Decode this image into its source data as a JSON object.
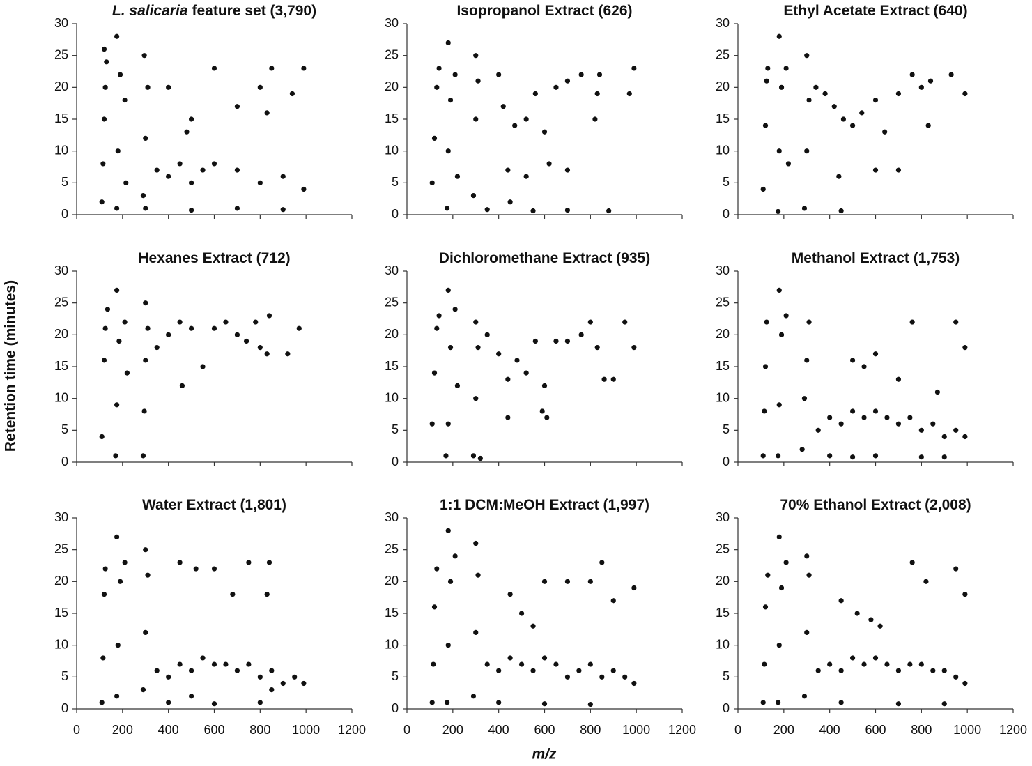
{
  "axis_labels": {
    "x": "m/z",
    "y": "Retention time (minutes)"
  },
  "chart_data": [
    {
      "type": "scatter",
      "title_emphasis": "L. salicaria",
      "title": "feature set (3,790)",
      "color": "#111111",
      "xtick_labels": false,
      "xlim": [
        0,
        1200
      ],
      "ylim": [
        0,
        30
      ],
      "xticks": [
        0,
        200,
        400,
        600,
        800,
        1000,
        1200
      ],
      "yticks": [
        0,
        5,
        10,
        15,
        20,
        25,
        30
      ],
      "x": [
        110,
        115,
        120,
        125,
        130,
        120,
        175,
        180,
        190,
        175,
        210,
        215,
        290,
        300,
        310,
        295,
        350,
        400,
        450,
        500,
        550,
        600,
        700,
        800,
        900,
        990,
        400,
        500,
        600,
        700,
        800,
        830,
        850,
        300,
        500,
        700,
        900,
        480,
        940,
        990
      ],
      "values": [
        2,
        8,
        15,
        20,
        24,
        26,
        1,
        10,
        22,
        28,
        18,
        5,
        3,
        12,
        20,
        25,
        7,
        6,
        8,
        5,
        7,
        8,
        7,
        5,
        6,
        4,
        20,
        15,
        23,
        17,
        20,
        16,
        23,
        1,
        0.7,
        1,
        0.8,
        13,
        19,
        23
      ]
    },
    {
      "type": "scatter",
      "title": "Isopropanol Extract (626)",
      "color": "#111111",
      "xtick_labels": false,
      "xlim": [
        0,
        1200
      ],
      "ylim": [
        0,
        30
      ],
      "xticks": [
        0,
        200,
        400,
        600,
        800,
        1000,
        1200
      ],
      "yticks": [
        0,
        5,
        10,
        15,
        20,
        25,
        30
      ],
      "x": [
        110,
        120,
        130,
        140,
        175,
        180,
        190,
        180,
        210,
        220,
        290,
        300,
        310,
        300,
        400,
        420,
        470,
        520,
        560,
        600,
        650,
        700,
        760,
        820,
        830,
        840,
        970,
        990,
        440,
        520,
        620,
        700,
        350,
        450,
        550,
        700,
        880
      ],
      "values": [
        5,
        12,
        20,
        23,
        1,
        10,
        18,
        27,
        22,
        6,
        3,
        15,
        21,
        25,
        22,
        17,
        14,
        15,
        19,
        13,
        20,
        21,
        22,
        15,
        19,
        22,
        19,
        23,
        7,
        6,
        8,
        7,
        0.8,
        2,
        0.6,
        0.7,
        0.6
      ]
    },
    {
      "type": "scatter",
      "title": "Ethyl Acetate Extract (640)",
      "color": "#111111",
      "xtick_labels": false,
      "xlim": [
        0,
        1200
      ],
      "ylim": [
        0,
        30
      ],
      "xticks": [
        0,
        200,
        400,
        600,
        800,
        1000,
        1200
      ],
      "yticks": [
        0,
        5,
        10,
        15,
        20,
        25,
        30
      ],
      "x": [
        110,
        120,
        125,
        130,
        175,
        180,
        190,
        180,
        210,
        220,
        290,
        300,
        310,
        300,
        340,
        380,
        420,
        460,
        500,
        540,
        600,
        640,
        700,
        760,
        800,
        830,
        840,
        930,
        990,
        440,
        600,
        700,
        450
      ],
      "values": [
        4,
        14,
        21,
        23,
        0.5,
        10,
        20,
        28,
        23,
        8,
        1,
        10,
        18,
        25,
        20,
        19,
        17,
        15,
        14,
        16,
        18,
        13,
        19,
        22,
        20,
        14,
        21,
        22,
        19,
        6,
        7,
        7,
        0.6
      ]
    },
    {
      "type": "scatter",
      "title": "Hexanes Extract (712)",
      "color": "#111111",
      "xtick_labels": false,
      "xlim": [
        0,
        1200
      ],
      "ylim": [
        0,
        30
      ],
      "xticks": [
        0,
        200,
        400,
        600,
        800,
        1000,
        1200
      ],
      "yticks": [
        0,
        5,
        10,
        15,
        20,
        25,
        30
      ],
      "x": [
        110,
        120,
        125,
        135,
        170,
        175,
        185,
        175,
        210,
        220,
        290,
        295,
        300,
        310,
        300,
        350,
        400,
        450,
        460,
        500,
        550,
        600,
        650,
        700,
        740,
        780,
        800,
        830,
        840,
        920,
        970
      ],
      "values": [
        4,
        16,
        21,
        24,
        1,
        9,
        19,
        27,
        22,
        14,
        1,
        8,
        16,
        21,
        25,
        18,
        20,
        22,
        12,
        21,
        15,
        21,
        22,
        20,
        19,
        22,
        18,
        17,
        23,
        17,
        21
      ]
    },
    {
      "type": "scatter",
      "title": "Dichloromethane Extract (935)",
      "color": "#111111",
      "xtick_labels": false,
      "xlim": [
        0,
        1200
      ],
      "ylim": [
        0,
        30
      ],
      "xticks": [
        0,
        200,
        400,
        600,
        800,
        1000,
        1200
      ],
      "yticks": [
        0,
        5,
        10,
        15,
        20,
        25,
        30
      ],
      "x": [
        110,
        120,
        130,
        140,
        170,
        180,
        190,
        180,
        210,
        220,
        290,
        300,
        310,
        320,
        300,
        350,
        400,
        440,
        480,
        520,
        560,
        600,
        650,
        700,
        760,
        800,
        830,
        860,
        900,
        950,
        990,
        440,
        590,
        610
      ],
      "values": [
        6,
        14,
        21,
        23,
        1,
        6,
        18,
        27,
        24,
        12,
        1,
        10,
        18,
        0.6,
        22,
        20,
        17,
        13,
        16,
        14,
        19,
        12,
        19,
        19,
        20,
        22,
        18,
        13,
        13,
        22,
        18,
        7,
        8,
        7
      ]
    },
    {
      "type": "scatter",
      "title": "Methanol Extract (1,753)",
      "color": "#111111",
      "xtick_labels": false,
      "xlim": [
        0,
        1200
      ],
      "ylim": [
        0,
        30
      ],
      "xticks": [
        0,
        200,
        400,
        600,
        800,
        1000,
        1200
      ],
      "yticks": [
        0,
        5,
        10,
        15,
        20,
        25,
        30
      ],
      "x": [
        110,
        115,
        120,
        125,
        175,
        180,
        190,
        180,
        210,
        280,
        290,
        300,
        310,
        350,
        400,
        450,
        500,
        550,
        600,
        650,
        700,
        750,
        800,
        850,
        900,
        950,
        990,
        400,
        500,
        600,
        800,
        900,
        500,
        550,
        600,
        700,
        760,
        870,
        950,
        990
      ],
      "values": [
        1,
        8,
        15,
        22,
        1,
        9,
        20,
        27,
        23,
        2,
        10,
        16,
        22,
        5,
        7,
        6,
        8,
        7,
        8,
        7,
        6,
        7,
        5,
        6,
        4,
        5,
        4,
        1,
        0.8,
        1,
        0.8,
        0.8,
        16,
        15,
        17,
        13,
        22,
        11,
        22,
        18
      ]
    },
    {
      "type": "scatter",
      "title": "Water Extract (1,801)",
      "color": "#111111",
      "xtick_labels": true,
      "xlim": [
        0,
        1200
      ],
      "ylim": [
        0,
        30
      ],
      "xticks": [
        0,
        200,
        400,
        600,
        800,
        1000,
        1200
      ],
      "yticks": [
        0,
        5,
        10,
        15,
        20,
        25,
        30
      ],
      "x": [
        110,
        115,
        120,
        125,
        175,
        180,
        190,
        175,
        210,
        290,
        300,
        310,
        300,
        350,
        400,
        450,
        500,
        550,
        600,
        650,
        700,
        750,
        800,
        850,
        900,
        950,
        990,
        400,
        500,
        600,
        800,
        850,
        450,
        520,
        600,
        680,
        750,
        830,
        840
      ],
      "values": [
        1,
        8,
        18,
        22,
        2,
        10,
        20,
        27,
        23,
        3,
        12,
        21,
        25,
        6,
        5,
        7,
        6,
        8,
        7,
        7,
        6,
        7,
        5,
        6,
        4,
        5,
        4,
        1,
        2,
        0.8,
        1,
        3,
        23,
        22,
        22,
        18,
        23,
        18,
        23
      ]
    },
    {
      "type": "scatter",
      "title": "1:1 DCM:MeOH Extract (1,997)",
      "color": "#111111",
      "xtick_labels": true,
      "xlim": [
        0,
        1200
      ],
      "ylim": [
        0,
        30
      ],
      "xticks": [
        0,
        200,
        400,
        600,
        800,
        1000,
        1200
      ],
      "yticks": [
        0,
        5,
        10,
        15,
        20,
        25,
        30
      ],
      "x": [
        110,
        115,
        120,
        130,
        175,
        180,
        190,
        180,
        210,
        290,
        300,
        310,
        300,
        350,
        400,
        450,
        500,
        550,
        600,
        650,
        700,
        750,
        800,
        850,
        900,
        950,
        990,
        400,
        600,
        800,
        450,
        500,
        550,
        600,
        700,
        800,
        850,
        900,
        990
      ],
      "values": [
        1,
        7,
        16,
        22,
        1,
        10,
        20,
        28,
        24,
        2,
        12,
        21,
        26,
        7,
        6,
        8,
        7,
        6,
        8,
        7,
        5,
        6,
        7,
        5,
        6,
        5,
        4,
        1,
        0.8,
        0.7,
        18,
        15,
        13,
        20,
        20,
        20,
        23,
        17,
        19
      ]
    },
    {
      "type": "scatter",
      "title": "70% Ethanol Extract (2,008)",
      "color": "#111111",
      "xtick_labels": true,
      "xlim": [
        0,
        1200
      ],
      "ylim": [
        0,
        30
      ],
      "xticks": [
        0,
        200,
        400,
        600,
        800,
        1000,
        1200
      ],
      "yticks": [
        0,
        5,
        10,
        15,
        20,
        25,
        30
      ],
      "x": [
        110,
        115,
        120,
        130,
        175,
        180,
        190,
        180,
        210,
        290,
        300,
        310,
        300,
        350,
        400,
        450,
        500,
        550,
        600,
        650,
        700,
        750,
        800,
        850,
        900,
        950,
        990,
        450,
        700,
        900,
        450,
        520,
        580,
        620,
        760,
        820,
        950,
        990
      ],
      "values": [
        1,
        7,
        16,
        21,
        1,
        10,
        19,
        27,
        23,
        2,
        12,
        21,
        24,
        6,
        7,
        6,
        8,
        7,
        8,
        7,
        6,
        7,
        7,
        6,
        6,
        5,
        4,
        1,
        0.8,
        0.8,
        17,
        15,
        14,
        13,
        23,
        20,
        22,
        18
      ]
    }
  ]
}
